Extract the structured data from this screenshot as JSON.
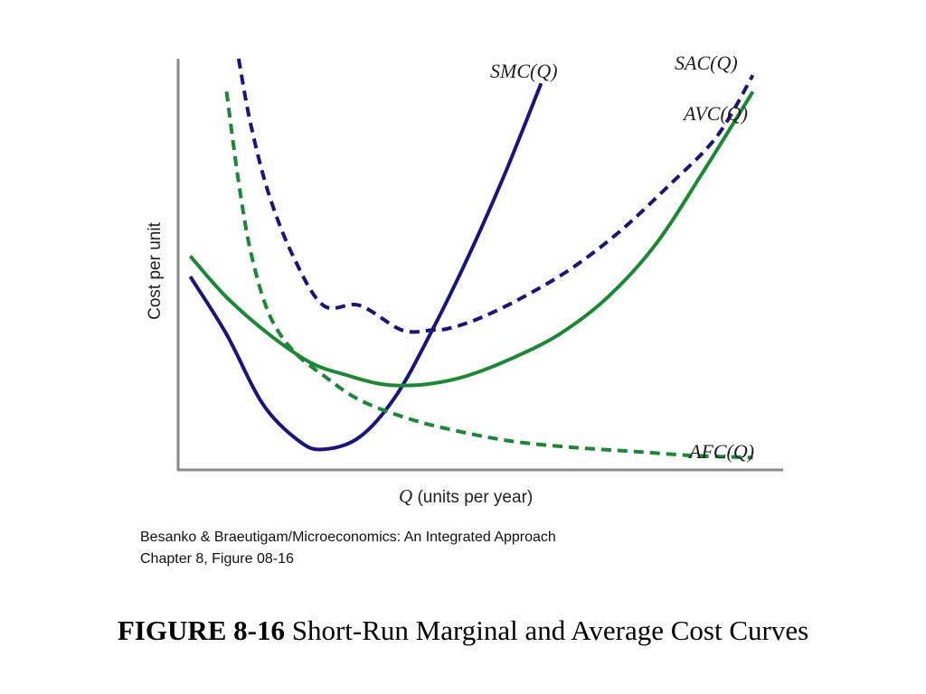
{
  "chart_data": {
    "type": "line",
    "title": "",
    "xlabel": {
      "symbol": "Q",
      "text": " (units per year)"
    },
    "ylabel": "Cost per unit",
    "xlim": [
      0,
      100
    ],
    "ylim": [
      0,
      100
    ],
    "grid": false,
    "legend": "none",
    "series": [
      {
        "name": "SMC(Q)",
        "color": "#1a1480",
        "dashed": false,
        "x": [
          2,
          8,
          14,
          20,
          24,
          30,
          36,
          42,
          48,
          54,
          60
        ],
        "y": [
          47,
          33,
          16,
          7,
          5,
          8,
          18,
          34,
          52,
          72,
          94
        ]
      },
      {
        "name": "SAC(Q)",
        "color": "#1a1480",
        "dashed": true,
        "x": [
          10,
          12,
          15,
          19,
          24,
          30,
          37,
          42,
          45,
          50,
          57,
          65,
          73,
          81,
          89,
          95
        ],
        "y": [
          100,
          84,
          67,
          52,
          40,
          40,
          34,
          34,
          34.5,
          37,
          42,
          49,
          58,
          69,
          81,
          96
        ]
      },
      {
        "name": "AVC(Q)",
        "color": "#178a32",
        "dashed": false,
        "x": [
          2,
          8,
          15,
          22,
          28,
          33,
          37,
          42,
          48,
          55,
          63,
          71,
          79,
          87,
          95
        ],
        "y": [
          52,
          42,
          33,
          26,
          23,
          21,
          20.5,
          21,
          23,
          27,
          33,
          42,
          55,
          73,
          92
        ]
      },
      {
        "name": "AFC(Q)",
        "color": "#178a32",
        "dashed": true,
        "x": [
          8,
          10,
          12,
          15,
          19,
          24,
          30,
          38,
          46,
          55,
          65,
          75,
          85,
          95
        ],
        "y": [
          92,
          70,
          53,
          38,
          29,
          23,
          17,
          12.5,
          9.5,
          7,
          5.5,
          4.5,
          3.5,
          3
        ]
      }
    ]
  },
  "source": {
    "line1": "Besanko & Braeutigam/Microeconomics: An Integrated Approach",
    "line2": "Chapter 8, Figure 08-16"
  },
  "caption": {
    "figure_number": "FIGURE 8-16",
    "title": " Short-Run Marginal and Average Cost Curves"
  }
}
